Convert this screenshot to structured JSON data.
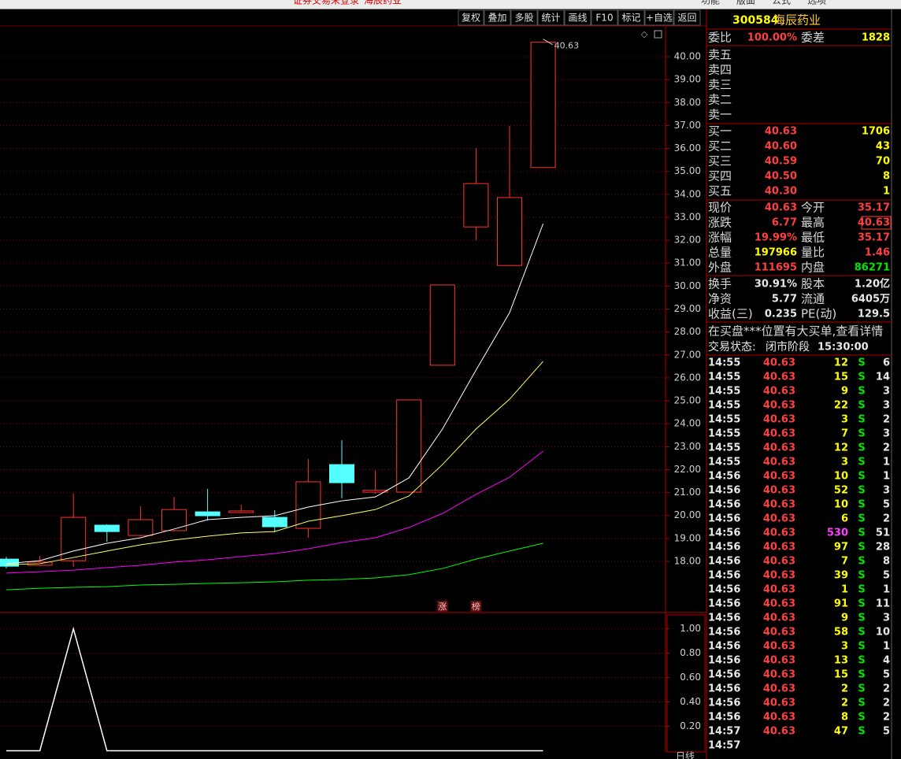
{
  "title_bar": {
    "status": "证券交易未登录",
    "stock": "海辰药业",
    "menu": [
      "功能",
      "版面",
      "公式",
      "选项"
    ]
  },
  "toolbar": [
    "复权",
    "叠加",
    "多股",
    "统计",
    "画线",
    "F10",
    "标记",
    "+自选",
    "返回"
  ],
  "period_label": "日线",
  "chart_data": [
    {
      "type": "candlestick",
      "open": [
        18.1,
        17.83,
        18.03,
        19.58,
        19.13,
        19.34,
        20.16,
        20.13,
        19.92,
        19.44,
        22.22,
        21.02,
        21.02,
        26.55,
        32.58,
        30.9,
        35.17
      ],
      "close": [
        17.79,
        17.97,
        19.92,
        19.3,
        19.82,
        20.26,
        19.99,
        20.2,
        19.51,
        21.47,
        21.43,
        21.1,
        25.04,
        30.05,
        34.47,
        33.86,
        40.63
      ],
      "high": [
        18.2,
        18.24,
        20.95,
        19.62,
        20.4,
        20.81,
        21.16,
        20.47,
        20.23,
        22.46,
        23.28,
        21.95,
        25.04,
        30.05,
        36.02,
        36.98,
        40.63
      ],
      "low": [
        17.7,
        17.8,
        17.76,
        18.86,
        19.1,
        19.3,
        19.78,
        20.1,
        19.27,
        19.03,
        20.75,
        20.95,
        21.02,
        26.55,
        32.0,
        30.9,
        35.17
      ],
      "up_color": "#ff3232",
      "down_color": "#54ffff",
      "series": [
        {
          "color": "#ffffff",
          "values": [
            17.9,
            18.03,
            18.45,
            18.79,
            19.03,
            19.41,
            19.82,
            19.92,
            19.99,
            20.37,
            20.64,
            20.81,
            21.64,
            23.77,
            26.34,
            28.84,
            32.72
          ]
        },
        {
          "color": "#ffff66",
          "values": [
            17.86,
            17.9,
            18.17,
            18.45,
            18.72,
            18.93,
            19.1,
            19.24,
            19.3,
            19.75,
            19.99,
            20.26,
            20.85,
            22.22,
            23.77,
            25.07,
            26.72
          ]
        },
        {
          "color": "#ff00ff",
          "values": [
            17.49,
            17.55,
            17.62,
            17.73,
            17.83,
            17.97,
            18.07,
            18.21,
            18.34,
            18.55,
            18.82,
            19.03,
            19.48,
            20.09,
            20.92,
            21.67,
            22.8
          ]
        },
        {
          "color": "#00ff00",
          "values": [
            16.76,
            16.83,
            16.87,
            16.9,
            16.97,
            17.0,
            17.04,
            17.07,
            17.11,
            17.18,
            17.21,
            17.28,
            17.42,
            17.69,
            18.1,
            18.45,
            18.79
          ]
        }
      ],
      "high_label": "40.63",
      "markers": [
        null,
        null,
        null,
        null,
        null,
        null,
        null,
        null,
        null,
        null,
        null,
        null,
        null,
        "涨",
        "榜",
        null,
        null
      ],
      "ylim": [
        15.77,
        41.27
      ],
      "yticks": [
        {
          "value": 18,
          "label": "18.00"
        },
        {
          "value": 19,
          "label": "19.00"
        },
        {
          "value": 20,
          "label": "20.00"
        },
        {
          "value": 21,
          "label": "21.00"
        },
        {
          "value": 22,
          "label": "22.00"
        },
        {
          "value": 23,
          "label": "23.00"
        },
        {
          "value": 24,
          "label": "24.00"
        },
        {
          "value": 25,
          "label": "25.00"
        },
        {
          "value": 26,
          "label": "26.00"
        },
        {
          "value": 27,
          "label": "27.00"
        },
        {
          "value": 28,
          "label": "28.00"
        },
        {
          "value": 29,
          "label": "29.00"
        },
        {
          "value": 30,
          "label": "30.00"
        },
        {
          "value": 31,
          "label": "31.00"
        },
        {
          "value": 32,
          "label": "32.00"
        },
        {
          "value": 33,
          "label": "33.00"
        },
        {
          "value": 34,
          "label": "34.00"
        },
        {
          "value": 35,
          "label": "35.00"
        },
        {
          "value": 36,
          "label": "36.00"
        },
        {
          "value": 37,
          "label": "37.00"
        },
        {
          "value": 38,
          "label": "38.00"
        },
        {
          "value": 39,
          "label": "39.00"
        },
        {
          "value": 40,
          "label": "40.00"
        }
      ],
      "grid": true
    },
    {
      "type": "line",
      "values": [
        0,
        0,
        1,
        0,
        0,
        0,
        0,
        0,
        0,
        0,
        0,
        0,
        0,
        0,
        0,
        0,
        0
      ],
      "color": "#ffffff",
      "ylim": [
        -0.01,
        1.12
      ],
      "yticks": [
        {
          "value": 0.2,
          "label": "0.20"
        },
        {
          "value": 0.4,
          "label": "0.40"
        },
        {
          "value": 0.6,
          "label": "0.60"
        },
        {
          "value": 0.8,
          "label": "0.80"
        },
        {
          "value": 1,
          "label": "1.00"
        }
      ],
      "grid": true
    }
  ],
  "quote": {
    "code": "300584",
    "name": "海辰药业",
    "ratio_row": [
      "委比",
      "100.00%",
      "委差",
      "1828"
    ],
    "asks": [
      "卖五",
      "卖四",
      "卖三",
      "卖二",
      "卖一"
    ],
    "bids": [
      [
        "买一",
        "40.63",
        "1706"
      ],
      [
        "买二",
        "40.60",
        "43"
      ],
      [
        "买三",
        "40.59",
        "70"
      ],
      [
        "买四",
        "40.50",
        "8"
      ],
      [
        "买五",
        "40.30",
        "1"
      ]
    ],
    "stats": [
      [
        "现价",
        "40.63",
        "今开",
        "35.17"
      ],
      [
        "涨跌",
        "6.77",
        "最高",
        "40.63"
      ],
      [
        "涨幅",
        "19.99%",
        "最低",
        "35.17"
      ],
      [
        "总量",
        "197966",
        "量比",
        "1.46"
      ],
      [
        "外盘",
        "111695",
        "内盘",
        "86271"
      ],
      [
        "换手",
        "30.91%",
        "股本",
        "1.20亿"
      ],
      [
        "净资",
        "5.77",
        "流通",
        "6405万"
      ],
      [
        "收益(三)",
        "0.235",
        "PE(动)",
        "129.5"
      ]
    ],
    "notice": "在买盘***位置有大买单,查看详情",
    "status": [
      "交易状态:",
      "闭市阶段",
      "15:30:00"
    ]
  },
  "trades": [
    [
      "14:55",
      "40.63",
      "12",
      "S",
      "6"
    ],
    [
      "14:55",
      "40.63",
      "15",
      "S",
      "14"
    ],
    [
      "14:55",
      "40.63",
      "9",
      "S",
      "3"
    ],
    [
      "14:55",
      "40.63",
      "22",
      "S",
      "3"
    ],
    [
      "14:55",
      "40.63",
      "3",
      "S",
      "2"
    ],
    [
      "14:55",
      "40.63",
      "7",
      "S",
      "3"
    ],
    [
      "14:55",
      "40.63",
      "12",
      "S",
      "2"
    ],
    [
      "14:55",
      "40.63",
      "3",
      "S",
      "1"
    ],
    [
      "14:56",
      "40.63",
      "10",
      "S",
      "1"
    ],
    [
      "14:56",
      "40.63",
      "52",
      "S",
      "3"
    ],
    [
      "14:56",
      "40.63",
      "10",
      "S",
      "5"
    ],
    [
      "14:56",
      "40.63",
      "6",
      "S",
      "2"
    ],
    [
      "14:56",
      "40.63",
      "530",
      "S",
      "51"
    ],
    [
      "14:56",
      "40.63",
      "97",
      "S",
      "28"
    ],
    [
      "14:56",
      "40.63",
      "7",
      "S",
      "8"
    ],
    [
      "14:56",
      "40.63",
      "39",
      "S",
      "5"
    ],
    [
      "14:56",
      "40.63",
      "1",
      "S",
      "1"
    ],
    [
      "14:56",
      "40.63",
      "91",
      "S",
      "11"
    ],
    [
      "14:56",
      "40.63",
      "9",
      "S",
      "3"
    ],
    [
      "14:56",
      "40.63",
      "58",
      "S",
      "10"
    ],
    [
      "14:56",
      "40.63",
      "3",
      "S",
      "1"
    ],
    [
      "14:56",
      "40.63",
      "13",
      "S",
      "4"
    ],
    [
      "14:56",
      "40.63",
      "15",
      "S",
      "5"
    ],
    [
      "14:56",
      "40.63",
      "2",
      "S",
      "2"
    ],
    [
      "14:56",
      "40.63",
      "2",
      "S",
      "2"
    ],
    [
      "14:56",
      "40.63",
      "8",
      "S",
      "2"
    ],
    [
      "14:57",
      "40.63",
      "47",
      "S",
      "5"
    ],
    [
      "14:57"
    ]
  ]
}
